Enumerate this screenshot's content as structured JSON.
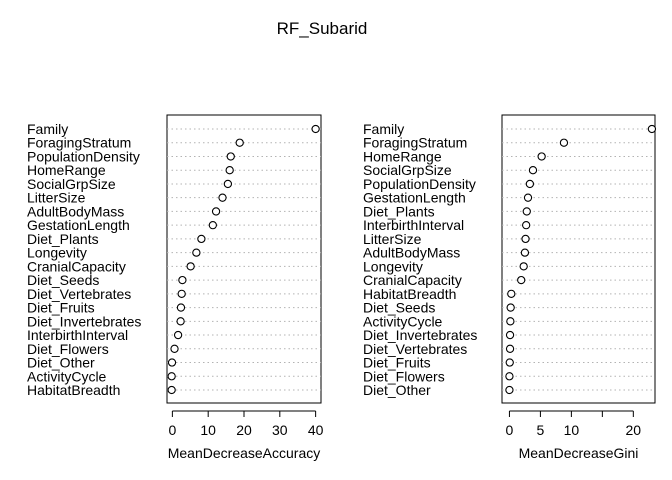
{
  "title": "RF_Subarid",
  "chart_data": [
    {
      "type": "scatter",
      "style": "dotchart",
      "xlabel": "MeanDecreaseAccuracy",
      "xlim": [
        -1.5,
        41.5
      ],
      "xticks": [
        0,
        10,
        20,
        30,
        40
      ],
      "grid": "dotted horizontal",
      "labels": [
        "Family",
        "ForagingStratum",
        "PopulationDensity",
        "HomeRange",
        "SocialGrpSize",
        "LitterSize",
        "AdultBodyMass",
        "GestationLength",
        "Diet_Plants",
        "Longevity",
        "CranialCapacity",
        "Diet_Seeds",
        "Diet_Vertebrates",
        "Diet_Fruits",
        "Diet_Invertebrates",
        "InterbirthInterval",
        "Diet_Flowers",
        "Diet_Other",
        "ActivityCycle",
        "HabitatBreadth"
      ],
      "values": [
        40.0,
        18.8,
        16.3,
        16.0,
        15.5,
        14.0,
        12.2,
        11.3,
        8.1,
        6.7,
        5.1,
        2.8,
        2.6,
        2.4,
        2.3,
        1.6,
        0.6,
        -0.1,
        -0.2,
        -0.2
      ]
    },
    {
      "type": "scatter",
      "style": "dotchart",
      "xlabel": "MeanDecreaseGini",
      "xlim": [
        -1.2,
        23.5
      ],
      "xticks": [
        0,
        5,
        10,
        15,
        20
      ],
      "xtick_labels": [
        "0",
        "5",
        "10",
        "",
        "20"
      ],
      "grid": "dotted horizontal",
      "labels": [
        "Family",
        "ForagingStratum",
        "HomeRange",
        "SocialGrpSize",
        "PopulationDensity",
        "GestationLength",
        "Diet_Plants",
        "InterbirthInterval",
        "LitterSize",
        "AdultBodyMass",
        "Longevity",
        "CranialCapacity",
        "HabitatBreadth",
        "Diet_Seeds",
        "ActivityCycle",
        "Diet_Invertebrates",
        "Diet_Vertebrates",
        "Diet_Fruits",
        "Diet_Flowers",
        "Diet_Other"
      ],
      "values": [
        23.0,
        8.8,
        5.2,
        3.8,
        3.3,
        3.0,
        2.8,
        2.7,
        2.6,
        2.5,
        2.3,
        1.9,
        0.3,
        0.2,
        0.15,
        0.1,
        0.1,
        0.05,
        0.0,
        0.0
      ]
    }
  ]
}
